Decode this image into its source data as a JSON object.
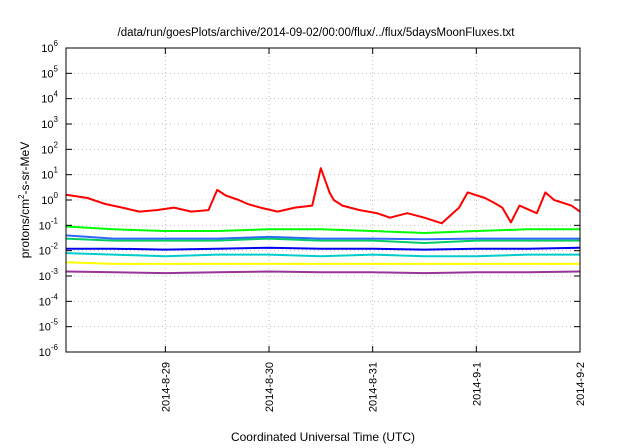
{
  "chart_data": {
    "type": "line",
    "title": "/data/run/goesPlots/archive/2014-09-02/00:00/flux/../flux/5daysMoonFluxes.txt",
    "xlabel": "Coordinated Universal Time (UTC)",
    "ylabel": {
      "before": "protons/cm",
      "sup": "2",
      "after": "-s-sr-MeV"
    },
    "yscale": "log",
    "ylim": [
      1e-06,
      1000000.0
    ],
    "y_ticks": [
      {
        "value": 1e-06,
        "base": "10",
        "exp": "-6"
      },
      {
        "value": 1e-05,
        "base": "10",
        "exp": "-5"
      },
      {
        "value": 0.0001,
        "base": "10",
        "exp": "-4"
      },
      {
        "value": 0.001,
        "base": "10",
        "exp": "-3"
      },
      {
        "value": 0.01,
        "base": "10",
        "exp": "-2"
      },
      {
        "value": 0.1,
        "base": "10",
        "exp": "-1"
      },
      {
        "value": 1,
        "base": "10",
        "exp": "0"
      },
      {
        "value": 10,
        "base": "10",
        "exp": "1"
      },
      {
        "value": 100,
        "base": "10",
        "exp": "2"
      },
      {
        "value": 1000,
        "base": "10",
        "exp": "3"
      },
      {
        "value": 10000,
        "base": "10",
        "exp": "4"
      },
      {
        "value": 100000,
        "base": "10",
        "exp": "5"
      },
      {
        "value": 1000000,
        "base": "10",
        "exp": "6"
      }
    ],
    "x_range_days": [
      "2014-08-28 01:00",
      "2014-09-02 00:00"
    ],
    "x_ticks": [
      {
        "label": "2014-8-29",
        "date": "2014-08-29"
      },
      {
        "label": "2014-8-30",
        "date": "2014-08-30"
      },
      {
        "label": "2014-8-31",
        "date": "2014-08-31"
      },
      {
        "label": "2014-9-1",
        "date": "2014-09-01"
      },
      {
        "label": "2014-9-2",
        "date": "2014-09-02"
      }
    ],
    "grid": true,
    "series": [
      {
        "color": "#ff0000",
        "x": [
          "2014-08-28 01:00",
          "2014-08-28 06:00",
          "2014-08-28 10:00",
          "2014-08-28 14:00",
          "2014-08-28 18:00",
          "2014-08-28 22:00",
          "2014-08-29 02:00",
          "2014-08-29 06:00",
          "2014-08-29 10:00",
          "2014-08-29 12:00",
          "2014-08-29 14:00",
          "2014-08-29 17:00",
          "2014-08-29 19:00",
          "2014-08-29 22:00",
          "2014-08-30 02:00",
          "2014-08-30 06:00",
          "2014-08-30 10:00",
          "2014-08-30 12:00",
          "2014-08-30 14:00",
          "2014-08-30 15:00",
          "2014-08-30 17:00",
          "2014-08-30 21:00",
          "2014-08-31 01:00",
          "2014-08-31 04:00",
          "2014-08-31 08:00",
          "2014-08-31 12:00",
          "2014-08-31 16:00",
          "2014-08-31 20:00",
          "2014-08-31 22:00",
          "2014-09-01 02:00",
          "2014-09-01 04:00",
          "2014-09-01 06:00",
          "2014-09-01 08:00",
          "2014-09-01 10:00",
          "2014-09-01 14:00",
          "2014-09-01 16:00",
          "2014-09-01 18:00",
          "2014-09-01 22:00",
          "2014-09-02 00:00"
        ],
        "y": [
          1.6,
          1.2,
          0.7,
          0.5,
          0.35,
          0.4,
          0.5,
          0.35,
          0.4,
          2.5,
          1.5,
          1.0,
          0.7,
          0.5,
          0.35,
          0.5,
          0.6,
          18,
          2.0,
          1.0,
          0.6,
          0.4,
          0.3,
          0.2,
          0.3,
          0.2,
          0.12,
          0.5,
          2.0,
          1.2,
          0.8,
          0.5,
          0.13,
          0.6,
          0.3,
          2.0,
          1.0,
          0.6,
          0.35
        ]
      },
      {
        "color": "#00ff00",
        "x": [
          "2014-08-28 01:00",
          "2014-08-28 12:00",
          "2014-08-29 00:00",
          "2014-08-29 12:00",
          "2014-08-30 00:00",
          "2014-08-30 12:00",
          "2014-08-31 00:00",
          "2014-08-31 12:00",
          "2014-09-01 00:00",
          "2014-09-01 12:00",
          "2014-09-02 00:00"
        ],
        "y": [
          0.09,
          0.07,
          0.06,
          0.06,
          0.07,
          0.07,
          0.06,
          0.05,
          0.06,
          0.07,
          0.07
        ]
      },
      {
        "color": "#00cc66",
        "x": [
          "2014-08-28 01:00",
          "2014-08-28 12:00",
          "2014-08-29 00:00",
          "2014-08-29 12:00",
          "2014-08-30 00:00",
          "2014-08-30 12:00",
          "2014-08-31 00:00",
          "2014-08-31 12:00",
          "2014-09-01 00:00",
          "2014-09-01 12:00",
          "2014-09-02 00:00"
        ],
        "y": [
          0.03,
          0.025,
          0.025,
          0.025,
          0.03,
          0.025,
          0.025,
          0.02,
          0.025,
          0.025,
          0.025
        ]
      },
      {
        "color": "#3366ff",
        "x": [
          "2014-08-28 01:00",
          "2014-08-28 12:00",
          "2014-08-29 00:00",
          "2014-08-29 12:00",
          "2014-08-30 00:00",
          "2014-08-30 12:00",
          "2014-08-31 00:00",
          "2014-08-31 12:00",
          "2014-09-01 00:00",
          "2014-09-01 12:00",
          "2014-09-02 00:00"
        ],
        "y": [
          0.04,
          0.03,
          0.03,
          0.03,
          0.035,
          0.03,
          0.03,
          0.028,
          0.03,
          0.03,
          0.03
        ]
      },
      {
        "color": "#0000ee",
        "x": [
          "2014-08-28 01:00",
          "2014-08-28 12:00",
          "2014-08-29 00:00",
          "2014-08-29 12:00",
          "2014-08-30 00:00",
          "2014-08-30 12:00",
          "2014-08-31 00:00",
          "2014-08-31 12:00",
          "2014-09-01 00:00",
          "2014-09-01 12:00",
          "2014-09-02 00:00"
        ],
        "y": [
          0.012,
          0.012,
          0.011,
          0.012,
          0.013,
          0.012,
          0.012,
          0.011,
          0.012,
          0.012,
          0.013
        ]
      },
      {
        "color": "#00cccc",
        "x": [
          "2014-08-28 01:00",
          "2014-08-28 12:00",
          "2014-08-29 00:00",
          "2014-08-29 12:00",
          "2014-08-30 00:00",
          "2014-08-30 12:00",
          "2014-08-31 00:00",
          "2014-08-31 12:00",
          "2014-09-01 00:00",
          "2014-09-01 12:00",
          "2014-09-02 00:00"
        ],
        "y": [
          0.008,
          0.007,
          0.006,
          0.007,
          0.007,
          0.006,
          0.007,
          0.006,
          0.006,
          0.007,
          0.007
        ]
      },
      {
        "color": "#ffff00",
        "x": [
          "2014-08-28 01:00",
          "2014-08-28 12:00",
          "2014-08-29 00:00",
          "2014-08-29 12:00",
          "2014-08-30 00:00",
          "2014-08-30 12:00",
          "2014-08-31 00:00",
          "2014-08-31 12:00",
          "2014-09-01 00:00",
          "2014-09-01 12:00",
          "2014-09-02 00:00"
        ],
        "y": [
          0.0035,
          0.003,
          0.003,
          0.003,
          0.003,
          0.003,
          0.003,
          0.003,
          0.003,
          0.003,
          0.003
        ]
      },
      {
        "color": "#993399",
        "x": [
          "2014-08-28 01:00",
          "2014-08-28 12:00",
          "2014-08-29 00:00",
          "2014-08-29 12:00",
          "2014-08-30 00:00",
          "2014-08-30 12:00",
          "2014-08-31 00:00",
          "2014-08-31 12:00",
          "2014-09-01 00:00",
          "2014-09-01 12:00",
          "2014-09-02 00:00"
        ],
        "y": [
          0.0015,
          0.0014,
          0.0013,
          0.0014,
          0.0015,
          0.0014,
          0.0014,
          0.0013,
          0.0014,
          0.0014,
          0.0015
        ]
      }
    ]
  }
}
